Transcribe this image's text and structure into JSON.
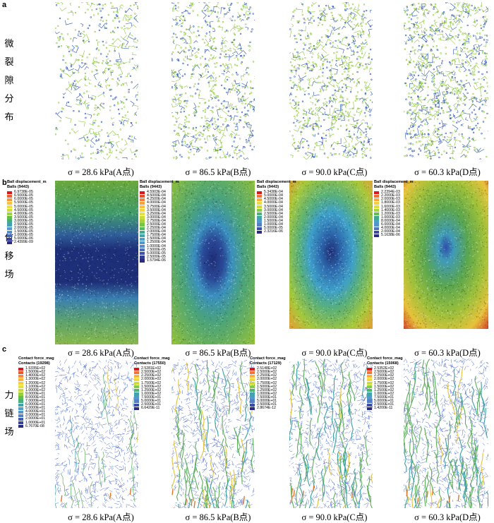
{
  "rows": {
    "a": {
      "letter": "a",
      "side_label": [
        "微",
        "裂",
        "隙",
        "分",
        "布"
      ],
      "captions": [
        "σ = 28.6 kPa(A点)",
        "σ = 86.5 kPa(B点)",
        "σ = 90.0 kPa(C点)",
        "σ = 60.3 kPa(D点)"
      ]
    },
    "b": {
      "letter": "b",
      "side_label": [
        "位",
        "移",
        "场"
      ],
      "captions": [
        "σ = 28.6 kPa(A点)",
        "σ = 86.5 kPa(B点)",
        "σ = 90.0 kPa(C点)",
        "σ = 60.3 kPa(D点)"
      ],
      "legends": [
        {
          "title": "Ball displacement_m",
          "subtitle": "Balls (9443)",
          "values": [
            "6.9738E-05",
            "6.5000E-05",
            "6.0000E-05",
            "5.5000E-05",
            "5.0000E-05",
            "4.5000E-05",
            "4.0000E-05",
            "3.5000E-05",
            "3.0000E-05",
            "2.5000E-05",
            "2.0000E-05",
            "1.5000E-05",
            "1.0000E-05",
            "5.0000E-06",
            "2.4399E-09"
          ]
        },
        {
          "title": "Ball displacement_m",
          "subtitle": "Balls (9443)",
          "values": [
            "4.5903E-04",
            "4.5000E-04",
            "4.2500E-04",
            "4.0000E-04",
            "3.7500E-04",
            "3.5000E-04",
            "3.2500E-04",
            "3.0000E-04",
            "2.7500E-04",
            "2.5000E-04",
            "2.2500E-04",
            "2.0000E-04",
            "1.7500E-04",
            "1.5000E-04",
            "1.2500E-04",
            "1.0000E-04",
            "7.5000E-05",
            "5.0000E-05",
            "2.5000E-05",
            "1.5794E-06"
          ]
        },
        {
          "title": "Ball displacement_m",
          "subtitle": "Balls (9443)",
          "values": [
            "5.3438E-04",
            "5.0000E-04",
            "4.5000E-04",
            "4.0000E-04",
            "3.5000E-04",
            "3.0000E-04",
            "2.5000E-04",
            "2.0000E-04",
            "1.5000E-04",
            "1.0000E-04",
            "5.0000E-05",
            "2.3216E-06"
          ]
        },
        {
          "title": "Ball displacement_m",
          "subtitle": "Balls (9443)",
          "values": [
            "2.2394E-03",
            "2.2000E-03",
            "2.0000E-03",
            "1.8000E-03",
            "1.6000E-03",
            "1.4000E-03",
            "1.2000E-03",
            "1.0000E-03",
            "8.0000E-04",
            "6.0000E-04",
            "4.0000E-04",
            "2.0000E-04",
            "5.1638E-06"
          ]
        }
      ]
    },
    "c": {
      "letter": "c",
      "side_label": [
        "力",
        "链",
        "场"
      ],
      "captions": [
        "σ = 28.6 kPa(A点)",
        "σ = 86.5 kPa(B点)",
        "σ = 90.0 kPa(C点)",
        "σ = 60.3 kPa(D点)"
      ],
      "legends": [
        {
          "title": "Contact force_mag",
          "subtitle": "Contacts (19298)",
          "values": [
            "1.5335E+02",
            "1.5000E+02",
            "1.4000E+02",
            "1.3000E+02",
            "1.2000E+02",
            "1.1000E+02",
            "1.0000E+02",
            "9.0000E+01",
            "8.0000E+01",
            "7.0000E+01",
            "6.0000E+01",
            "5.0000E+01",
            "4.0000E+01",
            "3.0000E+01",
            "2.0000E+01",
            "1.0000E+01",
            "6.7670E-08"
          ]
        },
        {
          "title": "Contact force_mag",
          "subtitle": "Contacts (17550)",
          "values": [
            "2.5281E+02",
            "2.5000E+02",
            "2.2500E+02",
            "2.0000E+02",
            "1.7500E+02",
            "1.5000E+02",
            "1.2500E+02",
            "1.0000E+02",
            "7.5000E+01",
            "5.0000E+01",
            "2.5000E+01",
            "6.6429E-11"
          ]
        },
        {
          "title": "Contact force_mag",
          "subtitle": "Contacts (17129)",
          "values": [
            "2.5148E+02",
            "2.5000E+02",
            "2.2500E+02",
            "2.0000E+02",
            "1.7500E+02",
            "1.5000E+02",
            "1.2500E+02",
            "1.0000E+02",
            "7.5000E+01",
            "5.0000E+01",
            "2.5000E+01",
            "2.8674E-12"
          ]
        },
        {
          "title": "Contact force_mag",
          "subtitle": "Contacts (15068)",
          "values": [
            "2.5352E+02",
            "2.5000E+02",
            "2.2500E+02",
            "2.0000E+02",
            "1.7500E+02",
            "1.5000E+02",
            "1.2500E+02",
            "1.0000E+02",
            "7.5000E+01",
            "5.0000E+01",
            "2.5000E+01",
            "1.4200E-11"
          ]
        }
      ]
    }
  },
  "colors": {
    "micro_green": "#8ac63a",
    "micro_blue": "#2b56b8",
    "force_blue": "#3a5ec8",
    "legend_scale": [
      "#d7191c",
      "#f47c3c",
      "#fdbb43",
      "#eee13c",
      "#b7d83a",
      "#5fbf4a",
      "#3aa59a",
      "#4f9fd0",
      "#5b86c8",
      "#3d4fa8",
      "#2a2a7e"
    ]
  }
}
